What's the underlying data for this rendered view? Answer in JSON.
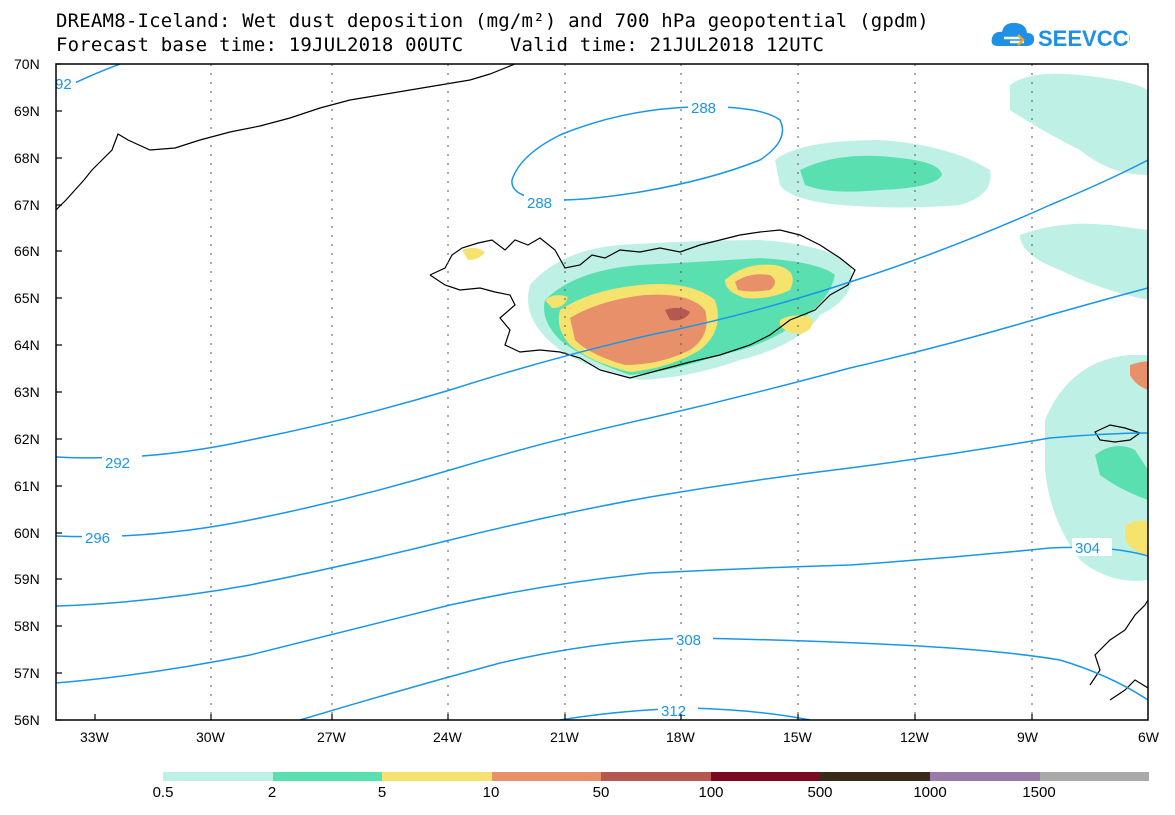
{
  "title": {
    "line1": "DREAM8-Iceland: Wet dust deposition (mg/m²) and 700 hPa geopotential (gpdm)",
    "line2": "Forecast base time: 19JUL2018 00UTC    Valid time: 21JUL2018 12UTC"
  },
  "logo": {
    "text": "SEEVCCC",
    "icon": "cloud-logo-icon",
    "color": "#1e90e6"
  },
  "map": {
    "lat_labels": [
      "70N",
      "69N",
      "68N",
      "67N",
      "66N",
      "65N",
      "64N",
      "63N",
      "62N",
      "61N",
      "60N",
      "59N",
      "58N",
      "57N",
      "56N"
    ],
    "lon_labels": [
      "33W",
      "30W",
      "27W",
      "24W",
      "21W",
      "18W",
      "15W",
      "12W",
      "9W",
      "6W"
    ],
    "contour_color": "#1a96e6",
    "contour_labels": [
      "92",
      "288",
      "288",
      "292",
      "296",
      "304",
      "308",
      "312"
    ]
  },
  "colorbar": {
    "colors": [
      "#bff0e6",
      "#5ae0b0",
      "#f5e36e",
      "#e8906a",
      "#b55850",
      "#7a0a20",
      "#3a2a1a",
      "#9a7aa8",
      "#a8a8a8"
    ],
    "labels": [
      "0.5",
      "2",
      "5",
      "10",
      "50",
      "100",
      "500",
      "1000",
      "1500"
    ]
  }
}
